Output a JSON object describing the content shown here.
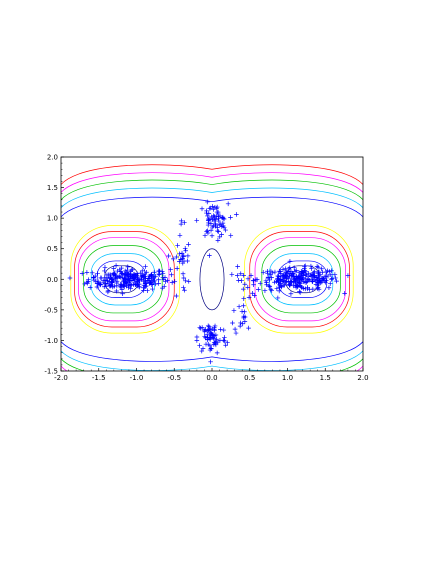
{
  "chart_data": {
    "type": "scatter",
    "title": "",
    "xlabel": "",
    "ylabel": "",
    "xlim": [
      -2.0,
      2.0
    ],
    "ylim": [
      -1.5,
      2.0
    ],
    "grid": false,
    "xticks": [
      "-2.0",
      "-1.5",
      "-1.0",
      "-0.5",
      "0.0",
      "0.5",
      "1.0",
      "1.5",
      "2.0"
    ],
    "yticks": [
      "-1.5",
      "-1.0",
      "-0.5",
      "0.0",
      "0.5",
      "1.0",
      "1.5",
      "2.0"
    ],
    "marker": "+",
    "marker_color": "#0000ff",
    "contour": {
      "note": "concentric level sets, one cycle per side lobe",
      "levels": [
        {
          "color": "#000080",
          "left_center": [
            -1.2,
            0.0
          ],
          "right_center": [
            1.2,
            0.0
          ],
          "rx": 0.22,
          "ry": 0.22
        },
        {
          "color": "#0000ff",
          "left_center": [
            -1.2,
            0.0
          ],
          "right_center": [
            1.2,
            0.0
          ],
          "rx": 0.32,
          "ry": 0.3
        },
        {
          "color": "#00bfff",
          "left_center": [
            -1.18,
            0.0
          ],
          "right_center": [
            1.18,
            0.0
          ],
          "rx": 0.42,
          "ry": 0.42
        },
        {
          "color": "#00c000",
          "left_center": [
            -1.18,
            0.0
          ],
          "right_center": [
            1.18,
            0.0
          ],
          "rx": 0.52,
          "ry": 0.55
        },
        {
          "color": "#ff00ff",
          "left_center": [
            -1.17,
            0.0
          ],
          "right_center": [
            1.17,
            0.0
          ],
          "rx": 0.6,
          "ry": 0.68
        },
        {
          "color": "#ff0000",
          "left_center": [
            -1.16,
            0.0
          ],
          "right_center": [
            1.16,
            0.0
          ],
          "rx": 0.66,
          "ry": 0.78
        },
        {
          "color": "#ffff00",
          "left_center": [
            -1.15,
            0.0
          ],
          "right_center": [
            1.15,
            0.0
          ],
          "rx": 0.72,
          "ry": 0.88
        }
      ],
      "center_ellipse": {
        "color": "#000080",
        "cx": 0.0,
        "cy": 0.0,
        "rx": 0.16,
        "ry": 0.5
      },
      "outer_bands": [
        {
          "color": "#0000ff",
          "y_top": 1.4,
          "y_bot": -1.4
        },
        {
          "color": "#00bfff",
          "y_top": 1.55,
          "y_bot": -1.55
        },
        {
          "color": "#00c000",
          "y_top": 1.68,
          "y_bot": -1.68
        },
        {
          "color": "#ff00ff",
          "y_top": 1.8,
          "y_bot": -1.8
        },
        {
          "color": "#ff0000",
          "y_top": 1.93,
          "y_bot": -1.93
        }
      ]
    },
    "clusters": [
      {
        "name": "",
        "cx": -1.1,
        "cy": 0.0,
        "sx": 0.45,
        "sy": 0.09,
        "n": 260
      },
      {
        "name": "",
        "cx": 1.15,
        "cy": 0.0,
        "sx": 0.45,
        "sy": 0.09,
        "n": 260
      },
      {
        "name": "",
        "cx": 0.02,
        "cy": 0.95,
        "sx": 0.16,
        "sy": 0.14,
        "n": 70
      },
      {
        "name": "",
        "cx": 0.0,
        "cy": -0.95,
        "sx": 0.16,
        "sy": 0.14,
        "n": 70
      },
      {
        "name": "",
        "cx": -0.4,
        "cy": 0.3,
        "sx": 0.1,
        "sy": 0.35,
        "n": 30
      },
      {
        "name": "",
        "cx": 0.42,
        "cy": -0.3,
        "sx": 0.1,
        "sy": 0.35,
        "n": 30
      }
    ]
  }
}
